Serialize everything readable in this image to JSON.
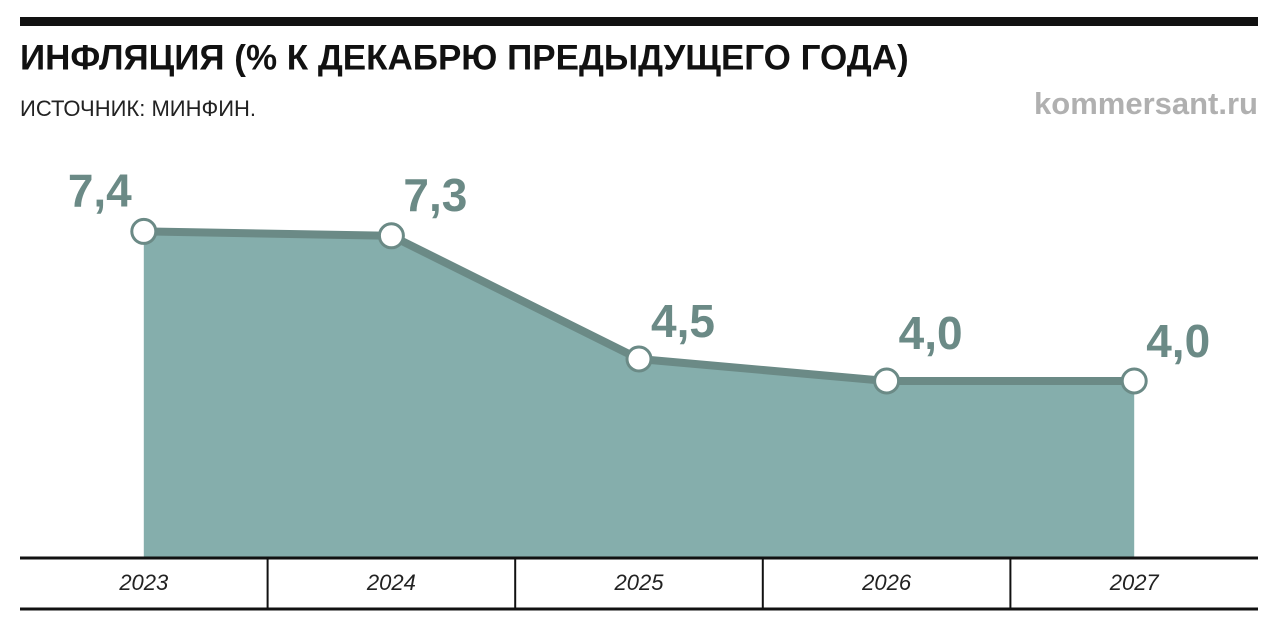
{
  "chart_data": {
    "type": "area",
    "title": "ИНФЛЯЦИЯ (% К ДЕКАБРЮ ПРЕДЫДУЩЕГО ГОДА)",
    "source": "ИСТОЧНИК: МИНФИН.",
    "publisher": "kommersant.ru",
    "categories": [
      "2023",
      "2024",
      "2025",
      "2026",
      "2027"
    ],
    "values": [
      7.4,
      7.3,
      4.5,
      4.0,
      4.0
    ],
    "value_labels": [
      "7,4",
      "7,3",
      "4,5",
      "4,0",
      "4,0"
    ],
    "ylim": [
      0,
      10
    ],
    "color": "#85aeac",
    "line_color": "#6b8a86"
  }
}
